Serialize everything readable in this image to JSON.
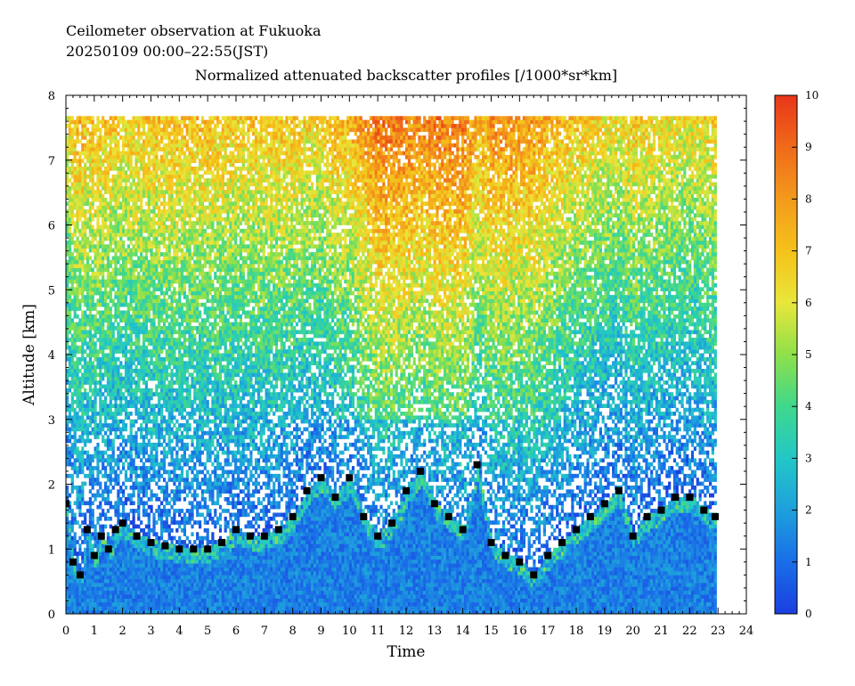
{
  "title_lines": [
    "Ceilometer observation at Fukuoka",
    "20250109  00:00–22:55(JST)"
  ],
  "chart_data": {
    "type": "heatmap",
    "title": "Normalized attenuated backscatter profiles [/1000*sr*km]",
    "xlabel": "Time",
    "ylabel": "Altitude [km]",
    "xlim": [
      0,
      24
    ],
    "ylim": [
      0,
      8
    ],
    "xticks": [
      0,
      1,
      2,
      3,
      4,
      5,
      6,
      7,
      8,
      9,
      10,
      11,
      12,
      13,
      14,
      15,
      16,
      17,
      18,
      19,
      20,
      21,
      22,
      23,
      24
    ],
    "yticks": [
      0,
      1,
      2,
      3,
      4,
      5,
      6,
      7,
      8
    ],
    "data_time_range": [
      0,
      22.92
    ],
    "data_max_altitude": 7.65,
    "colorbar": {
      "range": [
        0,
        10
      ],
      "ticks": [
        0,
        1,
        2,
        3,
        4,
        5,
        6,
        7,
        8,
        9,
        10
      ],
      "colors": [
        "#1b3fe0",
        "#1a6ee8",
        "#1ea0dc",
        "#22c7c7",
        "#3fd88c",
        "#8fe04a",
        "#e9e63a",
        "#f5c21a",
        "#f39a1c",
        "#f06a1a",
        "#e8361a"
      ]
    },
    "boundary_layer_top": {
      "marker": "square",
      "color": "#000000",
      "time_hours": [
        0,
        0.25,
        0.5,
        0.75,
        1,
        1.25,
        1.5,
        1.75,
        2,
        2.5,
        3,
        3.5,
        4,
        4.5,
        5,
        5.5,
        6,
        6.5,
        7,
        7.5,
        8,
        8.5,
        9,
        9.5,
        10,
        10.5,
        11,
        11.5,
        12,
        12.5,
        13,
        13.5,
        14,
        14.5,
        15,
        15.5,
        16,
        16.5,
        17,
        17.5,
        18,
        18.5,
        19,
        19.5,
        20,
        20.5,
        21,
        21.5,
        22,
        22.5,
        22.9
      ],
      "altitude_km": [
        1.7,
        0.8,
        0.6,
        1.3,
        0.9,
        1.2,
        1.0,
        1.3,
        1.4,
        1.2,
        1.1,
        1.05,
        1.0,
        1.0,
        1.0,
        1.1,
        1.3,
        1.2,
        1.2,
        1.3,
        1.5,
        1.9,
        2.1,
        1.8,
        2.1,
        1.5,
        1.2,
        1.4,
        1.9,
        2.2,
        1.7,
        1.5,
        1.3,
        2.3,
        1.1,
        0.9,
        0.8,
        0.6,
        0.9,
        1.1,
        1.3,
        1.5,
        1.7,
        1.9,
        1.2,
        1.5,
        1.6,
        1.8,
        1.8,
        1.6,
        1.5
      ]
    }
  }
}
